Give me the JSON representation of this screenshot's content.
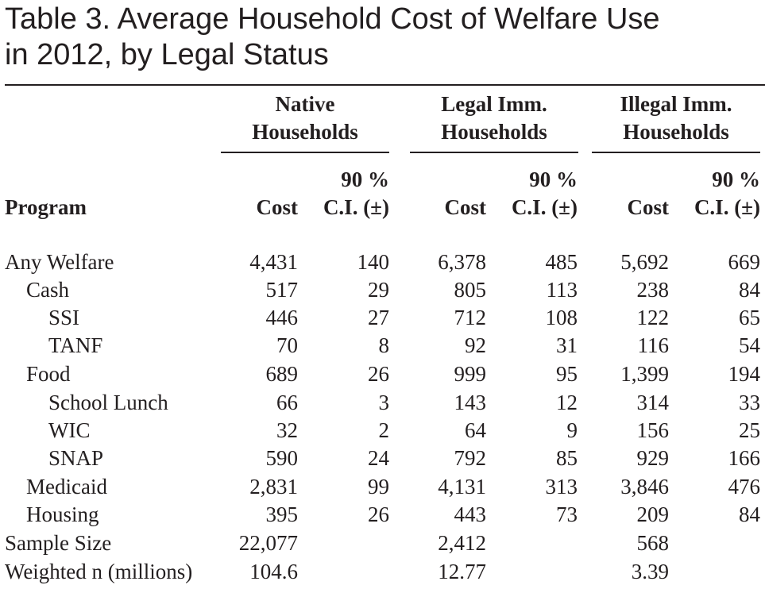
{
  "title_line1": "Table 3. Average Household Cost of Welfare Use",
  "title_line2": "in 2012, by Legal Status",
  "groups": [
    {
      "line1": "Native",
      "line2": "Households"
    },
    {
      "line1": "Legal Imm.",
      "line2": "Households"
    },
    {
      "line1": "Illegal Imm.",
      "line2": "Households"
    }
  ],
  "headers": {
    "program": "Program",
    "cost": "Cost",
    "ci_top": "90 %",
    "ci_bottom": "C.I. (±)"
  },
  "rows": [
    {
      "label": "Any Welfare",
      "native_cost": "4,431",
      "native_ci": "140",
      "legal_cost": "6,378",
      "legal_ci": "485",
      "illegal_cost": "5,692",
      "illegal_ci": "669"
    },
    {
      "label": "Cash",
      "native_cost": "517",
      "native_ci": "29",
      "legal_cost": "805",
      "legal_ci": "113",
      "illegal_cost": "238",
      "illegal_ci": "84"
    },
    {
      "label": "SSI",
      "native_cost": "446",
      "native_ci": "27",
      "legal_cost": "712",
      "legal_ci": "108",
      "illegal_cost": "122",
      "illegal_ci": "65"
    },
    {
      "label": "TANF",
      "native_cost": "70",
      "native_ci": "8",
      "legal_cost": "92",
      "legal_ci": "31",
      "illegal_cost": "116",
      "illegal_ci": "54"
    },
    {
      "label": "Food",
      "native_cost": "689",
      "native_ci": "26",
      "legal_cost": "999",
      "legal_ci": "95",
      "illegal_cost": "1,399",
      "illegal_ci": "194"
    },
    {
      "label": "School Lunch",
      "native_cost": "66",
      "native_ci": "3",
      "legal_cost": "143",
      "legal_ci": "12",
      "illegal_cost": "314",
      "illegal_ci": "33"
    },
    {
      "label": "WIC",
      "native_cost": "32",
      "native_ci": "2",
      "legal_cost": "64",
      "legal_ci": "9",
      "illegal_cost": "156",
      "illegal_ci": "25"
    },
    {
      "label": "SNAP",
      "native_cost": "590",
      "native_ci": "24",
      "legal_cost": "792",
      "legal_ci": "85",
      "illegal_cost": "929",
      "illegal_ci": "166"
    },
    {
      "label": "Medicaid",
      "native_cost": "2,831",
      "native_ci": "99",
      "legal_cost": "4,131",
      "legal_ci": "313",
      "illegal_cost": "3,846",
      "illegal_ci": "476"
    },
    {
      "label": "Housing",
      "native_cost": "395",
      "native_ci": "26",
      "legal_cost": "443",
      "legal_ci": "73",
      "illegal_cost": "209",
      "illegal_ci": "84"
    },
    {
      "label": "Sample Size",
      "native_cost": "22,077",
      "native_ci": "",
      "legal_cost": "2,412",
      "legal_ci": "",
      "illegal_cost": "568",
      "illegal_ci": ""
    },
    {
      "label": "Weighted n (millions)",
      "native_cost": "104.6",
      "native_ci": "",
      "legal_cost": "12.77",
      "legal_ci": "",
      "illegal_cost": "3.39",
      "illegal_ci": ""
    }
  ]
}
